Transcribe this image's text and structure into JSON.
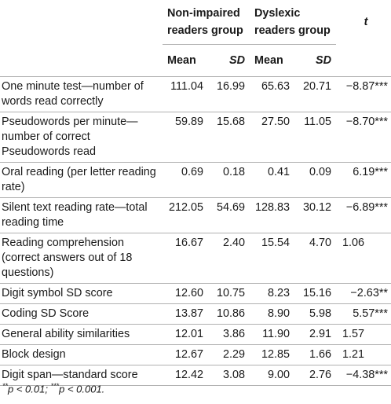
{
  "header": {
    "group1": "Non-impaired readers group",
    "group2": "Dyslexic readers group",
    "t": "t",
    "mean1": "Mean",
    "sd1": "SD",
    "mean2": "Mean",
    "sd2": "SD"
  },
  "rows": [
    {
      "label": "One minute test—number of words read correctly",
      "mean1": "111.04",
      "sd1": "16.99",
      "mean2": "65.63",
      "sd2": "20.71",
      "t": "−8.87***"
    },
    {
      "label": "Pseudowords per minute—number of correct Pseudowords read",
      "mean1": "59.89",
      "sd1": "15.68",
      "mean2": "27.50",
      "sd2": "11.05",
      "t": "−8.70***"
    },
    {
      "label": "Oral reading (per letter reading rate)",
      "mean1": "0.69",
      "sd1": "0.18",
      "mean2": "0.41",
      "sd2": "0.09",
      "t": "6.19***"
    },
    {
      "label": "Silent text reading rate—total reading time",
      "mean1": "212.05",
      "sd1": "54.69",
      "mean2": "128.83",
      "sd2": "30.12",
      "t": "−6.89***"
    },
    {
      "label": "Reading comprehension (correct answers out of 18 questions)",
      "mean1": "16.67",
      "sd1": "2.40",
      "mean2": "15.54",
      "sd2": "4.70",
      "t": "1.06"
    },
    {
      "label": "Digit symbol SD score",
      "mean1": "12.60",
      "sd1": "10.75",
      "mean2": "8.23",
      "sd2": "15.16",
      "t": "−2.63**"
    },
    {
      "label": "Coding SD Score",
      "mean1": "13.87",
      "sd1": "10.86",
      "mean2": "8.90",
      "sd2": "5.98",
      "t": "5.57***"
    },
    {
      "label": "General ability similarities",
      "mean1": "12.01",
      "sd1": "3.86",
      "mean2": "11.90",
      "sd2": "2.91",
      "t": "1.57"
    },
    {
      "label": "Block design",
      "mean1": "12.67",
      "sd1": "2.29",
      "mean2": "12.85",
      "sd2": "1.66",
      "t": "1.21"
    },
    {
      "label": "Digit span—standard score",
      "mean1": "12.42",
      "sd1": "3.08",
      "mean2": "9.00",
      "sd2": "2.76",
      "t": "−4.38***"
    }
  ],
  "footnote": {
    "sup1": "**",
    "text1": "p < 0.01; ",
    "sup2": "***",
    "text2": "p < 0.001."
  }
}
